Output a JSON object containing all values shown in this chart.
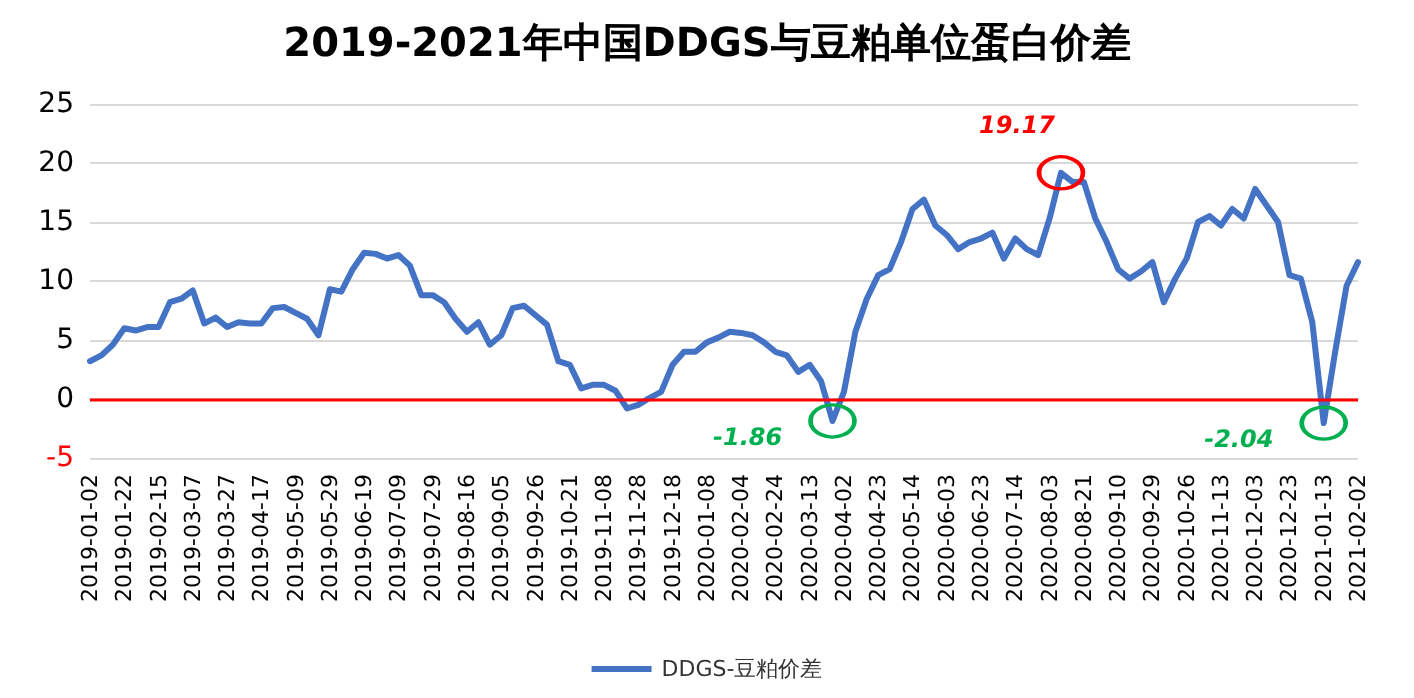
{
  "chart_data": {
    "type": "line",
    "title": "2019-2021年中国DDGS与豆粕单位蛋白价差",
    "categories": [
      "2019-01-02",
      null,
      null,
      "2019-01-22",
      null,
      null,
      "2019-02-15",
      null,
      null,
      "2019-03-07",
      null,
      null,
      "2019-03-27",
      null,
      null,
      "2019-04-17",
      null,
      null,
      "2019-05-09",
      null,
      null,
      "2019-05-29",
      null,
      null,
      "2019-06-19",
      null,
      null,
      "2019-07-09",
      null,
      null,
      "2019-07-29",
      null,
      null,
      "2019-08-16",
      null,
      null,
      "2019-09-05",
      null,
      null,
      "2019-09-26",
      null,
      null,
      "2019-10-21",
      null,
      null,
      "2019-11-08",
      null,
      null,
      "2019-11-28",
      null,
      null,
      "2019-12-18",
      null,
      null,
      "2020-01-08",
      null,
      null,
      "2020-02-04",
      null,
      null,
      "2020-02-24",
      null,
      null,
      "2020-03-13",
      null,
      null,
      "2020-04-02",
      null,
      null,
      "2020-04-23",
      null,
      null,
      "2020-05-14",
      null,
      null,
      "2020-06-03",
      null,
      null,
      "2020-06-23",
      null,
      null,
      "2020-07-14",
      null,
      null,
      "2020-08-03",
      null,
      null,
      "2020-08-21",
      null,
      null,
      "2020-09-10",
      null,
      null,
      "2020-09-29",
      null,
      null,
      "2020-10-26",
      null,
      null,
      "2020-11-13",
      null,
      null,
      "2020-12-03",
      null,
      null,
      "2020-12-23",
      null,
      null,
      "2021-01-13",
      null,
      null,
      "2021-02-02"
    ],
    "series": [
      {
        "name": "DDGS-豆粕价差",
        "color": "#4472c4",
        "values": [
          3.2,
          3.7,
          4.6,
          6.0,
          5.8,
          6.1,
          6.1,
          8.2,
          8.5,
          9.2,
          6.4,
          6.9,
          6.1,
          6.5,
          6.4,
          6.4,
          7.7,
          7.8,
          7.3,
          6.8,
          5.4,
          9.3,
          9.1,
          11.0,
          12.4,
          12.3,
          11.9,
          12.2,
          11.3,
          8.8,
          8.8,
          8.2,
          6.8,
          5.7,
          6.5,
          4.6,
          5.4,
          7.7,
          7.9,
          7.1,
          6.3,
          3.2,
          2.9,
          0.9,
          1.2,
          1.2,
          0.7,
          -0.8,
          -0.5,
          0.1,
          0.6,
          2.9,
          4.0,
          4.0,
          4.8,
          5.2,
          5.7,
          5.6,
          5.4,
          4.8,
          4.0,
          3.7,
          2.3,
          2.9,
          1.5,
          -1.86,
          0.6,
          5.7,
          8.5,
          10.5,
          11.0,
          13.3,
          16.1,
          16.9,
          14.7,
          13.9,
          12.7,
          13.3,
          13.6,
          14.1,
          11.9,
          13.6,
          12.7,
          12.2,
          15.3,
          19.17,
          18.4,
          18.4,
          15.3,
          13.3,
          11.0,
          10.2,
          10.8,
          11.6,
          8.2,
          10.2,
          11.9,
          15.0,
          15.5,
          14.7,
          16.1,
          15.3,
          17.8,
          16.4,
          15.0,
          10.5,
          10.2,
          6.5,
          -2.04,
          4.0,
          9.6,
          11.6
        ]
      }
    ],
    "ylim": [
      -5,
      25
    ],
    "yticks": [
      -5,
      0,
      5,
      10,
      15,
      20,
      25
    ],
    "grid": "y",
    "legend": "bottom",
    "marker": "none",
    "line_style": "solid",
    "ref_lines": [
      {
        "axis": "y",
        "value": 0,
        "color": "#ff0000"
      }
    ],
    "annotations": [
      "-1.86",
      "19.17",
      "-2.04"
    ]
  }
}
